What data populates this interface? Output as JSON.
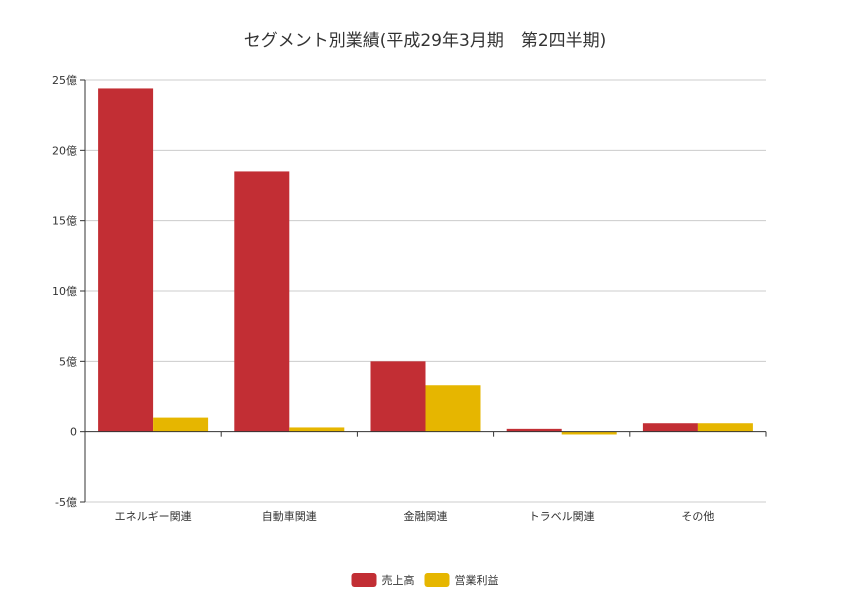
{
  "chart_data": {
    "type": "bar",
    "title": "セグメント別業績(平成29年3月期　第2四半期)",
    "categories": [
      "エネルギー関連",
      "自動車関連",
      "金融関連",
      "トラベル関連",
      "その他"
    ],
    "series": [
      {
        "name": "売上高",
        "color": "#c22e34",
        "values": [
          24.4,
          18.5,
          5.0,
          0.2,
          0.6
        ]
      },
      {
        "name": "営業利益",
        "color": "#e6b600",
        "values": [
          1.0,
          0.3,
          3.3,
          -0.2,
          0.6
        ]
      }
    ],
    "ylim": [
      -5,
      25
    ],
    "yticks": [
      -5,
      0,
      5,
      10,
      15,
      20,
      25
    ],
    "ytick_labels": [
      "-5億",
      "0",
      "5億",
      "10億",
      "15億",
      "20億",
      "25億"
    ],
    "grid": true,
    "legend_position": "bottom-center"
  }
}
